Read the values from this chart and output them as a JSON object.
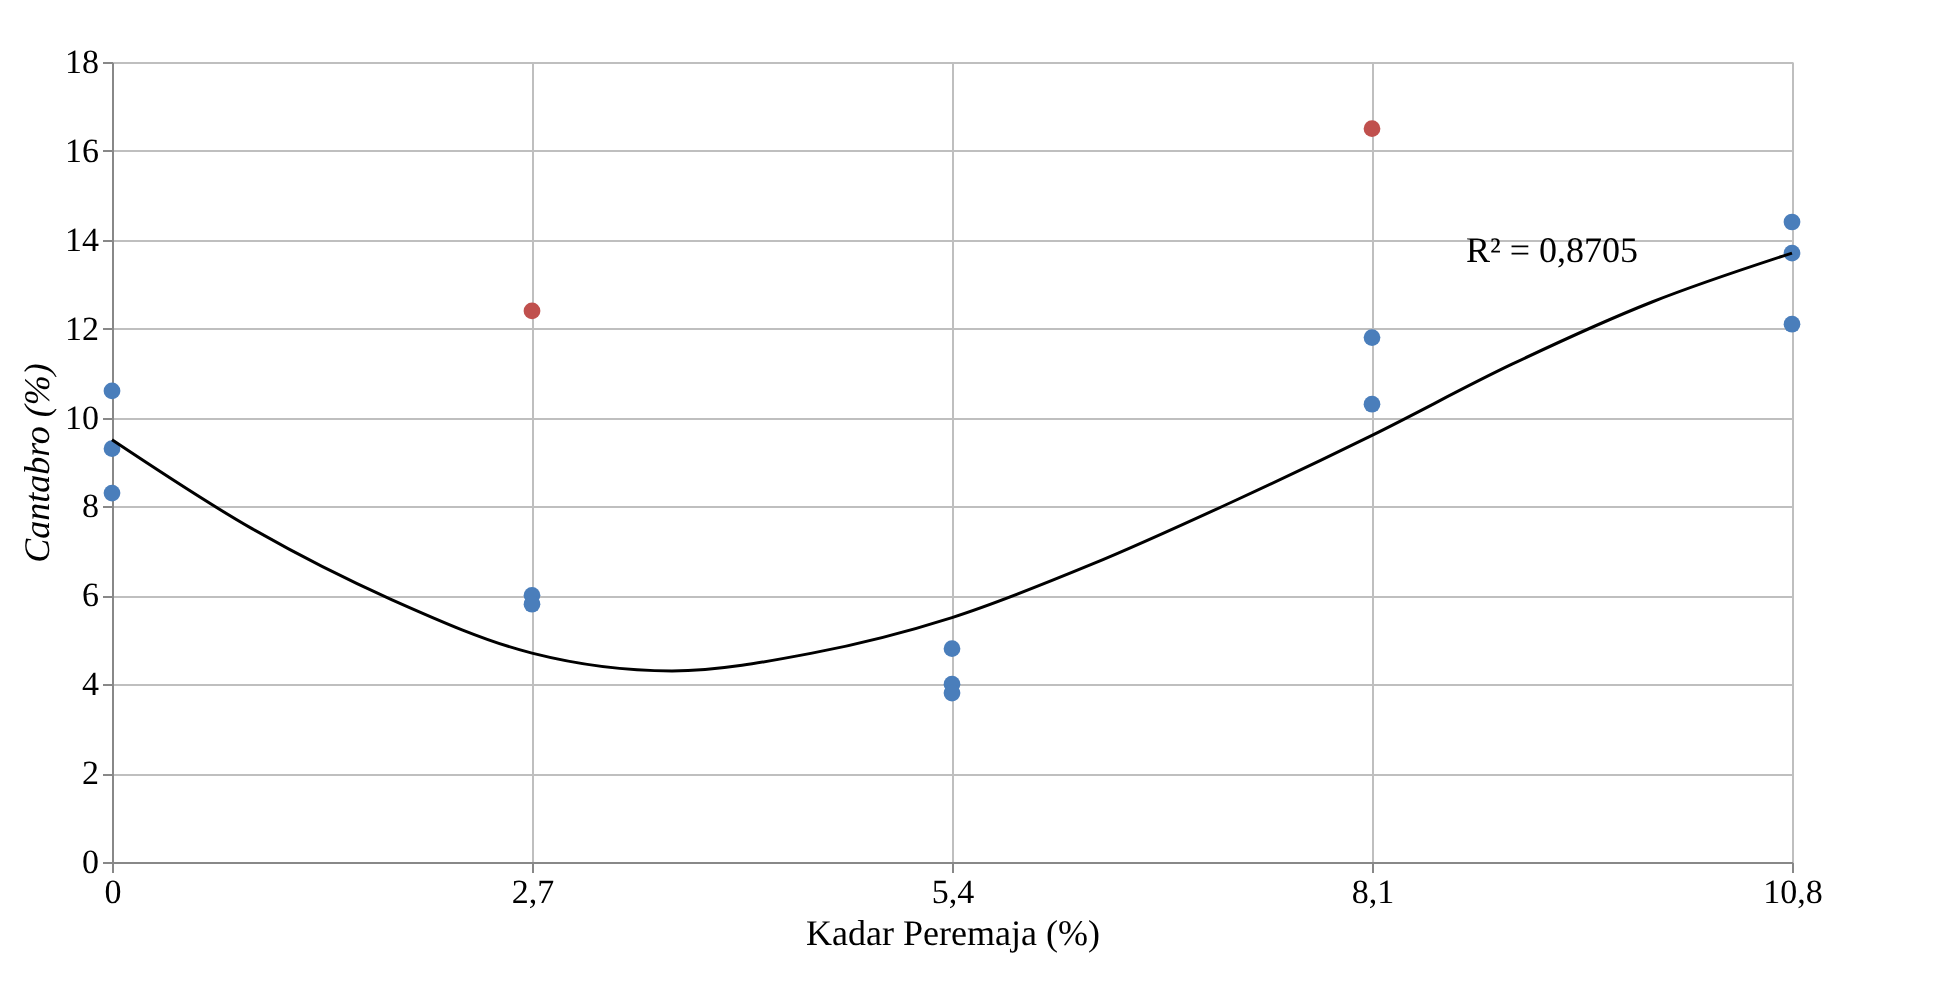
{
  "chart_data": {
    "type": "scatter",
    "xlabel": "Kadar Peremaja (%)",
    "ylabel": "Cantabro (%)",
    "xlim": [
      0,
      10.8
    ],
    "xticks": [
      0,
      {
        "value": 2.7,
        "label": "2,7"
      },
      {
        "value": 5.4,
        "label": "5,4"
      },
      {
        "value": 8.1,
        "label": "8,1"
      },
      {
        "value": 10.8,
        "label": "10,8"
      }
    ],
    "ylim": [
      0,
      18
    ],
    "yticks": [
      0,
      2,
      4,
      6,
      8,
      10,
      12,
      14,
      16,
      18
    ],
    "grid": true,
    "legend": false,
    "marker": "circle",
    "series": [
      {
        "color": "#4a7ebb",
        "x": [
          0,
          0,
          0,
          2.7,
          2.7,
          5.4,
          5.4,
          5.4,
          8.1,
          8.1,
          10.8,
          10.8,
          10.8
        ],
        "values": [
          10.6,
          9.3,
          8.3,
          6.0,
          5.8,
          4.8,
          4.0,
          3.8,
          11.8,
          10.3,
          14.4,
          13.7,
          12.1
        ]
      },
      {
        "color": "#c0504d",
        "x": [
          2.7,
          8.1
        ],
        "values": [
          12.4,
          16.5
        ]
      },
      {
        "type": "line",
        "color": "#000000",
        "marker": "none",
        "line_style": "solid",
        "x": [
          0,
          0.9,
          1.8,
          2.7,
          3.6,
          4.5,
          5.4,
          6.3,
          7.2,
          8.1,
          9.0,
          9.9,
          10.8
        ],
        "values": [
          9.5,
          7.5,
          5.9,
          4.7,
          4.3,
          4.7,
          5.5,
          6.7,
          8.1,
          9.6,
          11.2,
          12.6,
          13.7
        ]
      }
    ],
    "annotations": [
      "R² = 0,8705"
    ]
  }
}
